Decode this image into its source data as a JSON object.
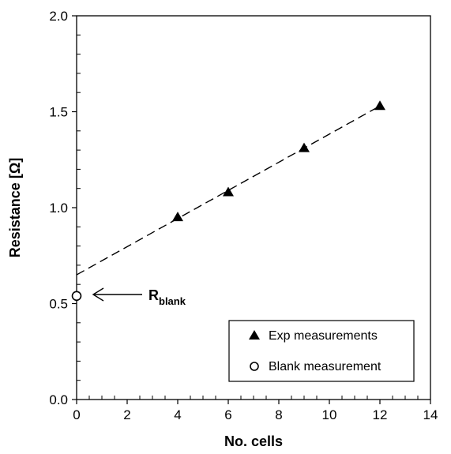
{
  "chart_data": {
    "type": "scatter",
    "xlabel": "No. cells",
    "ylabel": "Resistance [Ω]",
    "xlim": [
      0,
      14
    ],
    "ylim": [
      0.0,
      2.0
    ],
    "x_ticks": [
      "0",
      "2",
      "4",
      "6",
      "8",
      "10",
      "12",
      "14"
    ],
    "y_ticks": [
      "0.0",
      "0.5",
      "1.0",
      "1.5",
      "2.0"
    ],
    "grid": false,
    "legend_position": "bottom-right",
    "series": [
      {
        "name": "Exp measurements",
        "marker": "filled-triangle",
        "points": [
          {
            "x": 4,
            "y": 0.95
          },
          {
            "x": 6,
            "y": 1.08
          },
          {
            "x": 9,
            "y": 1.31
          },
          {
            "x": 12,
            "y": 1.53
          }
        ]
      },
      {
        "name": "Blank measurement",
        "marker": "open-circle",
        "points": [
          {
            "x": 0,
            "y": 0.54
          }
        ]
      }
    ],
    "fit_line": {
      "style": "dashed",
      "x": [
        0,
        12
      ],
      "y": [
        0.65,
        1.53
      ]
    },
    "annotation": {
      "main": "R",
      "subscript": "blank",
      "target": {
        "x": 0,
        "y": 0.54
      }
    }
  }
}
